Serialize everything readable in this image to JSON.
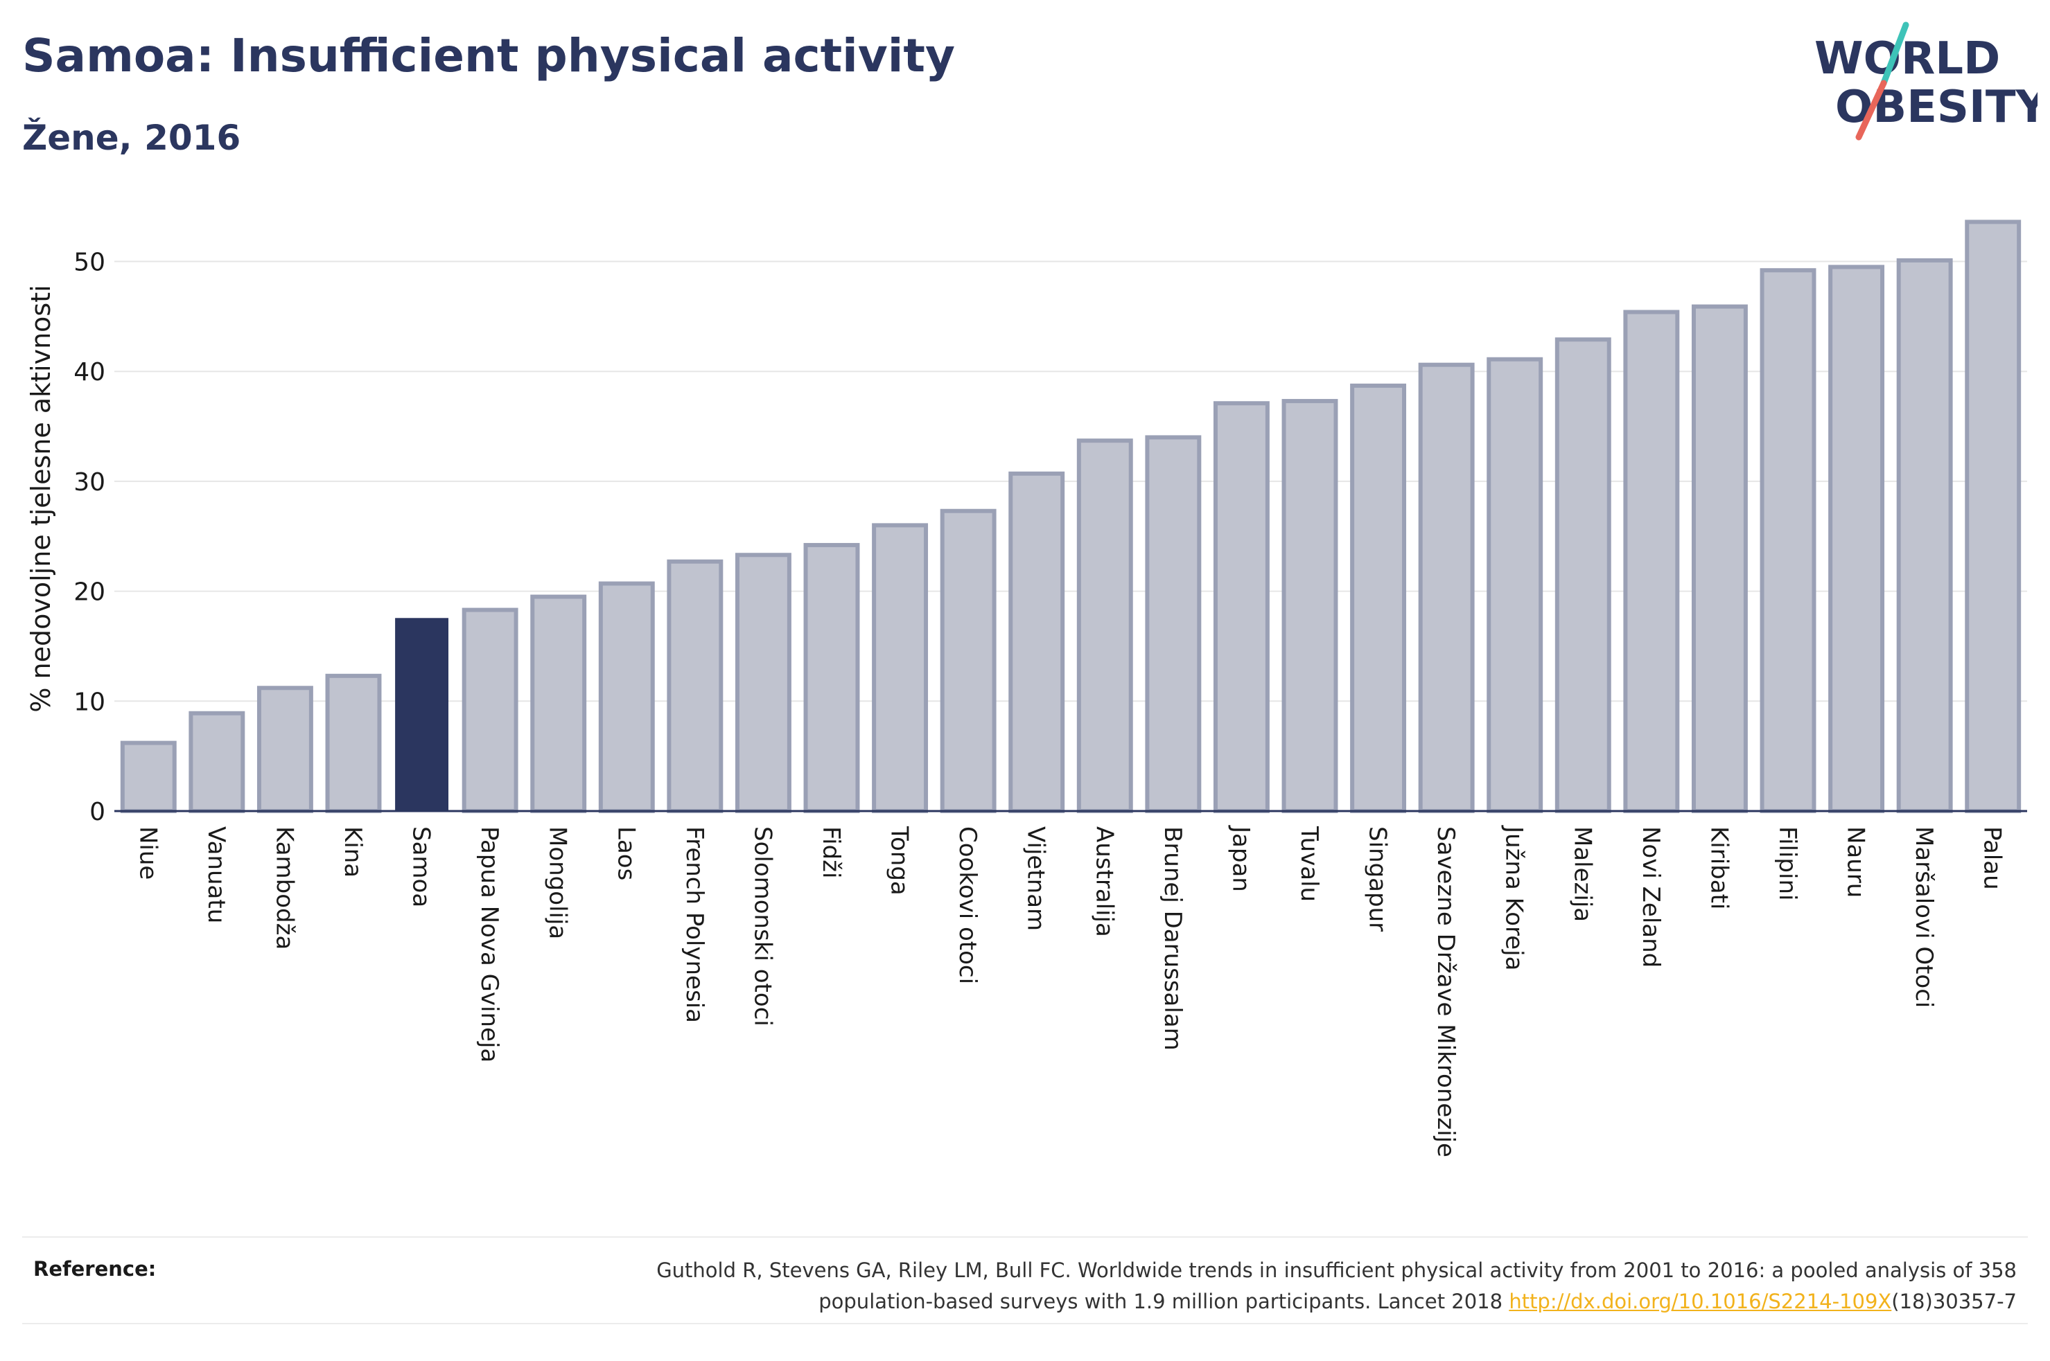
{
  "header": {
    "title": "Samoa: Insufficient physical activity",
    "subtitle": "Žene, 2016"
  },
  "logo": {
    "line1": "WORLD",
    "line2": "OBESITY",
    "text_color": "#2b365f",
    "slash_colors": [
      "#3ec3b8",
      "#e8665a"
    ]
  },
  "colors": {
    "bar_fill": "#c0c3cf",
    "bar_stroke": "#9aa0b5",
    "highlight": "#2b365f",
    "grid": "#e6e6e6",
    "axis": "#2b365f",
    "link": "#f2b21c"
  },
  "chart_data": {
    "type": "bar",
    "title": "Samoa: Insufficient physical activity",
    "subtitle": "Žene, 2016",
    "ylabel": "% nedovoljne tjelesne aktivnosti",
    "xlabel": "",
    "ylim": [
      0,
      55
    ],
    "yticks": [
      0,
      10,
      20,
      30,
      40,
      50
    ],
    "grid": true,
    "highlight": "Samoa",
    "categories": [
      "Niue",
      "Vanuatu",
      "Kambodža",
      "Kina",
      "Samoa",
      "Papua Nova Gvineja",
      "Mongolija",
      "Laos",
      "French Polynesia",
      "Solomonski otoci",
      "Fidži",
      "Tonga",
      "Cookovi otoci",
      "Vijetnam",
      "Australija",
      "Brunej Darussalam",
      "Japan",
      "Tuvalu",
      "Singapur",
      "Savezne Države Mikronezije",
      "Južna Koreja",
      "Malezija",
      "Novi Zeland",
      "Kiribati",
      "Filipini",
      "Nauru",
      "Maršalovi Otoci",
      "Palau"
    ],
    "values": [
      6.2,
      8.9,
      11.2,
      12.3,
      17.5,
      18.3,
      19.5,
      20.7,
      22.7,
      23.3,
      24.2,
      26.0,
      27.3,
      30.7,
      33.7,
      34.0,
      37.1,
      37.3,
      38.7,
      40.6,
      41.1,
      42.9,
      45.4,
      45.9,
      49.2,
      49.5,
      50.1,
      53.6
    ]
  },
  "reference": {
    "label": "Reference:",
    "line1": "Guthold R, Stevens GA, Riley LM, Bull FC. Worldwide trends in insufficient physical activity from 2001 to 2016: a pooled analysis of 358",
    "line2_pre": "population-based surveys with 1.9 million participants. Lancet 2018 ",
    "link": "http://dx.doi.org/10.1016/S2214-109X",
    "line2_post": "(18)30357-7"
  }
}
